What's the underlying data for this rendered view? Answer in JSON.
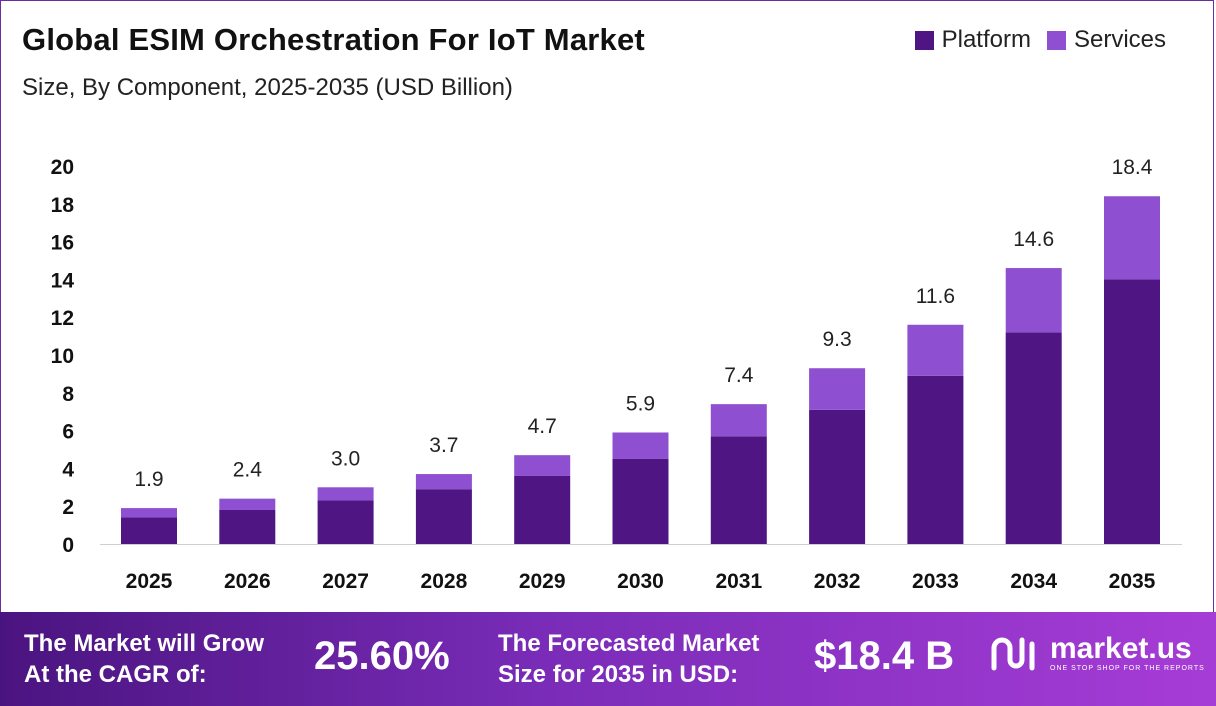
{
  "header": {
    "title": "Global ESIM Orchestration For IoT Market",
    "subtitle": "Size, By Component, 2025-2035 (USD Billion)"
  },
  "legend": [
    {
      "label": "Platform",
      "color": "#4f1583"
    },
    {
      "label": "Services",
      "color": "#8e4fd0"
    }
  ],
  "chart_data": {
    "type": "bar",
    "stacked": true,
    "categories": [
      "2025",
      "2026",
      "2027",
      "2028",
      "2029",
      "2030",
      "2031",
      "2032",
      "2033",
      "2034",
      "2035"
    ],
    "series": [
      {
        "name": "Platform",
        "color": "#4f1583",
        "values": [
          1.4,
          1.8,
          2.3,
          2.9,
          3.6,
          4.5,
          5.7,
          7.1,
          8.9,
          11.2,
          14.0
        ]
      },
      {
        "name": "Services",
        "color": "#8e4fd0",
        "values": [
          0.5,
          0.6,
          0.7,
          0.8,
          1.1,
          1.4,
          1.7,
          2.2,
          2.7,
          3.4,
          4.4
        ]
      }
    ],
    "totals": [
      "1.9",
      "2.4",
      "3.0",
      "3.7",
      "4.7",
      "5.9",
      "7.4",
      "9.3",
      "11.6",
      "14.6",
      "18.4"
    ],
    "ylim": [
      0,
      20
    ],
    "yticks": [
      "0",
      "2",
      "4",
      "6",
      "8",
      "10",
      "12",
      "14",
      "16",
      "18",
      "20"
    ],
    "grid": false
  },
  "footer": {
    "cagr_label_line1": "The Market will Grow",
    "cagr_label_line2": "At the CAGR of:",
    "cagr_value": "25.60%",
    "forecast_label_line1": "The Forecasted Market",
    "forecast_label_line2": "Size for 2035 in USD:",
    "forecast_value": "$18.4 B",
    "logo_name": "market.us",
    "logo_tagline": "ONE STOP SHOP FOR THE REPORTS"
  }
}
